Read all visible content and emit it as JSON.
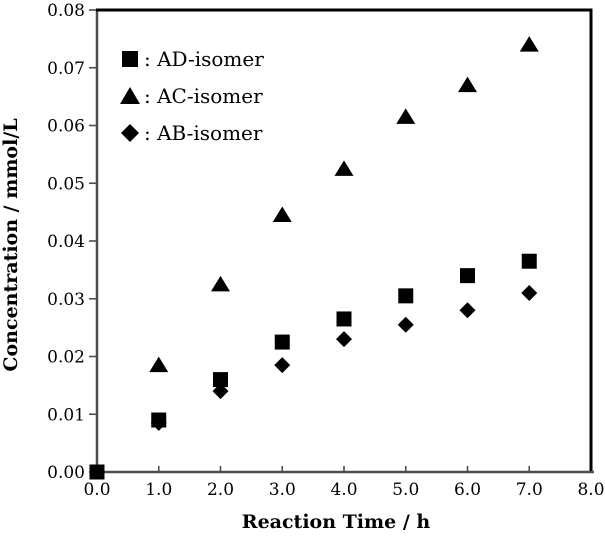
{
  "chart_data": {
    "type": "scatter",
    "title": "",
    "xlabel": "Reaction Time / h",
    "ylabel": "Concentration / mmol/L",
    "xlim": [
      0.0,
      8.0
    ],
    "ylim": [
      0.0,
      0.08
    ],
    "xticks": [
      "0.0",
      "1.0",
      "2.0",
      "3.0",
      "4.0",
      "5.0",
      "6.0",
      "7.0",
      "8.0"
    ],
    "yticks": [
      "0.00",
      "0.01",
      "0.02",
      "0.03",
      "0.04",
      "0.05",
      "0.06",
      "0.07",
      "0.08"
    ],
    "grid": false,
    "background_color": "#ffffff",
    "marker_color": "#000000",
    "axis_color": "#4d4d4d",
    "border_color": "#000000",
    "legend": {
      "position": "inside-top-left",
      "entries": [
        {
          "marker": "square",
          "label": ": AD-isomer"
        },
        {
          "marker": "triangle",
          "label": ": AC-isomer"
        },
        {
          "marker": "diamond",
          "label": ": AB-isomer"
        }
      ]
    },
    "series": [
      {
        "name": "AD-isomer",
        "marker": "square",
        "points": [
          [
            0,
            0.0
          ],
          [
            1,
            0.009
          ],
          [
            2,
            0.016
          ],
          [
            3,
            0.0225
          ],
          [
            4,
            0.0265
          ],
          [
            5,
            0.0305
          ],
          [
            6,
            0.034
          ],
          [
            7,
            0.0365
          ]
        ]
      },
      {
        "name": "AC-isomer",
        "marker": "triangle",
        "points": [
          [
            1,
            0.0185
          ],
          [
            2,
            0.0325
          ],
          [
            3,
            0.0445
          ],
          [
            4,
            0.0525
          ],
          [
            5,
            0.0615
          ],
          [
            6,
            0.067
          ],
          [
            7,
            0.074
          ]
        ]
      },
      {
        "name": "AB-isomer",
        "marker": "diamond",
        "points": [
          [
            1,
            0.0085
          ],
          [
            2,
            0.014
          ],
          [
            3,
            0.0185
          ],
          [
            4,
            0.023
          ],
          [
            5,
            0.0255
          ],
          [
            6,
            0.028
          ],
          [
            7,
            0.031
          ]
        ]
      }
    ]
  }
}
